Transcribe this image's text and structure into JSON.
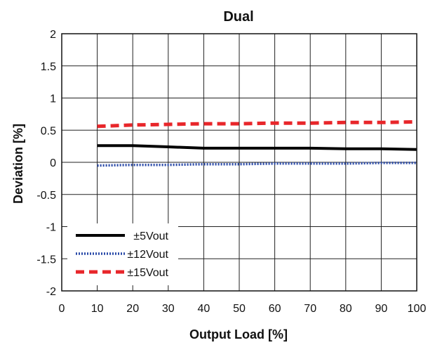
{
  "chart_data": {
    "type": "line",
    "title": "Dual",
    "xlabel": "Output Load [%]",
    "ylabel": "Deviation [%]",
    "xlim": [
      0,
      100
    ],
    "ylim": [
      -2,
      2
    ],
    "x_ticks": [
      0,
      10,
      20,
      30,
      40,
      50,
      60,
      70,
      80,
      90,
      100
    ],
    "y_ticks": [
      -2,
      -1.5,
      -1,
      -0.5,
      0,
      0.5,
      1,
      1.5,
      2
    ],
    "x_tick_labels": [
      "0",
      "10",
      "20",
      "30",
      "40",
      "50",
      "60",
      "70",
      "80",
      "90",
      "100"
    ],
    "y_tick_labels": [
      "-2",
      "-1.5",
      "-1",
      "-0.5",
      "0",
      "0.5",
      "1",
      "1.5",
      "2"
    ],
    "grid": true,
    "legend_position": "bottom-left",
    "series": [
      {
        "name": "±5Vout",
        "color": "#000000",
        "style": "solid",
        "x": [
          10,
          20,
          30,
          40,
          50,
          60,
          70,
          80,
          90,
          100
        ],
        "values": [
          0.26,
          0.26,
          0.24,
          0.22,
          0.22,
          0.22,
          0.22,
          0.21,
          0.21,
          0.2
        ]
      },
      {
        "name": "±12Vout",
        "color": "#2a4aa8",
        "style": "dotted",
        "x": [
          10,
          20,
          30,
          40,
          50,
          60,
          70,
          80,
          90,
          100
        ],
        "values": [
          -0.05,
          -0.04,
          -0.04,
          -0.03,
          -0.03,
          -0.02,
          -0.02,
          -0.02,
          -0.01,
          -0.01
        ]
      },
      {
        "name": "±15Vout",
        "color": "#e8262a",
        "style": "dashed",
        "x": [
          10,
          20,
          30,
          40,
          50,
          60,
          70,
          80,
          90,
          100
        ],
        "values": [
          0.56,
          0.58,
          0.59,
          0.6,
          0.6,
          0.61,
          0.61,
          0.62,
          0.62,
          0.63
        ]
      }
    ]
  }
}
